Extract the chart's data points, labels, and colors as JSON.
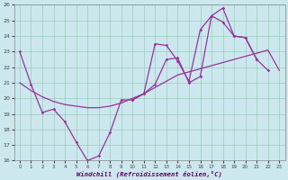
{
  "xlabel": "Windchill (Refroidissement éolien,°C)",
  "background_color": "#cce8ee",
  "line_color": "#993399",
  "xlim": [
    -0.5,
    23.5
  ],
  "ylim": [
    16,
    26
  ],
  "xticks": [
    0,
    1,
    2,
    3,
    4,
    5,
    6,
    7,
    8,
    9,
    10,
    11,
    12,
    13,
    14,
    15,
    16,
    17,
    18,
    19,
    20,
    21,
    22,
    23
  ],
  "yticks": [
    16,
    17,
    18,
    19,
    20,
    21,
    22,
    23,
    24,
    25,
    26
  ],
  "series1_x": [
    0,
    1,
    2,
    3,
    4,
    5,
    6,
    7,
    8,
    9,
    10,
    11,
    12,
    13,
    14,
    15,
    16,
    17,
    18,
    19,
    20,
    21,
    22,
    23
  ],
  "series1_y": [
    23.0,
    20.9,
    19.1,
    19.3,
    18.5,
    17.2,
    16.0,
    16.3,
    17.8,
    19.9,
    19.9,
    20.3,
    20.9,
    22.5,
    22.6,
    21.0,
    21.4,
    25.3,
    24.9,
    24.0,
    23.9,
    22.5,
    21.8,
    null
  ],
  "series2_x": [
    0,
    1,
    2,
    3,
    4,
    5,
    6,
    7,
    8,
    9,
    10,
    11,
    12,
    13,
    14,
    15,
    16,
    17,
    18,
    19,
    20,
    21,
    22,
    23
  ],
  "series2_y": [
    21.0,
    20.5,
    20.1,
    19.8,
    19.6,
    19.5,
    19.4,
    19.4,
    19.5,
    19.7,
    20.0,
    20.3,
    20.7,
    21.1,
    21.5,
    21.7,
    21.9,
    22.1,
    22.3,
    22.5,
    22.7,
    22.9,
    23.1,
    21.8
  ],
  "series3_x": [
    0,
    1,
    2,
    3,
    4,
    5,
    6,
    7,
    8,
    9,
    10,
    11,
    12,
    13,
    14,
    15,
    16,
    17,
    18,
    19,
    20,
    21,
    22,
    23
  ],
  "series3_y": [
    null,
    null,
    null,
    null,
    null,
    null,
    null,
    null,
    null,
    null,
    19.9,
    20.3,
    23.5,
    23.4,
    22.4,
    21.1,
    24.4,
    25.3,
    25.8,
    24.0,
    23.9,
    22.5,
    null,
    null
  ]
}
